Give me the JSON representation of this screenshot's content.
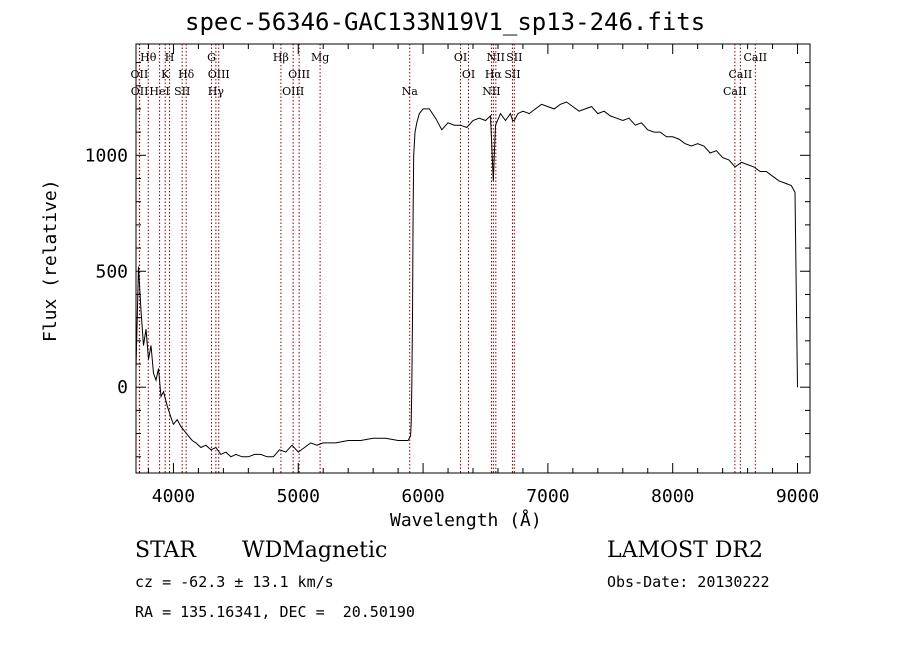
{
  "chart_data": {
    "type": "line",
    "title": "spec-56346-GAC133N19V1_sp13-246.fits",
    "xlabel": "Wavelength (Å)",
    "ylabel": "Flux (relative)",
    "xlim": [
      3700,
      9100
    ],
    "ylim": [
      -370,
      1480
    ],
    "xticks": [
      "4000",
      "5000",
      "6000",
      "7000",
      "8000",
      "9000"
    ],
    "yticks": [
      "0",
      "500",
      "1000"
    ],
    "line_color": "#000000",
    "marker_color": "#8b0000",
    "series": [
      {
        "x": [
          3700,
          3720,
          3740,
          3760,
          3780,
          3800,
          3820,
          3840,
          3860,
          3880,
          3900,
          3920,
          3950,
          3980,
          4000,
          4030,
          4060,
          4090,
          4120,
          4150,
          4180,
          4220,
          4260,
          4300,
          4340,
          4380,
          4420,
          4460,
          4500,
          4550,
          4600,
          4650,
          4700,
          4750,
          4800,
          4850,
          4900,
          4950,
          5000,
          5050,
          5100,
          5150,
          5200,
          5300,
          5400,
          5500,
          5600,
          5700,
          5800,
          5880,
          5900,
          5905,
          5910,
          5915,
          5920,
          5925,
          5935,
          5950,
          5970,
          6000,
          6050,
          6100,
          6150,
          6200,
          6250,
          6300,
          6350,
          6400,
          6450,
          6500,
          6540,
          6563,
          6580,
          6620,
          6660,
          6700,
          6717,
          6731,
          6760,
          6800,
          6850,
          6900,
          6950,
          7000,
          7050,
          7100,
          7150,
          7200,
          7250,
          7300,
          7350,
          7400,
          7450,
          7500,
          7550,
          7600,
          7650,
          7700,
          7750,
          7800,
          7850,
          7900,
          7950,
          8000,
          8050,
          8100,
          8150,
          8200,
          8250,
          8300,
          8350,
          8400,
          8450,
          8500,
          8550,
          8600,
          8650,
          8700,
          8750,
          8800,
          8850,
          8900,
          8950,
          8980,
          8990,
          9000
        ],
        "y": [
          80,
          520,
          330,
          180,
          250,
          120,
          180,
          60,
          30,
          80,
          -40,
          -20,
          -80,
          -130,
          -160,
          -140,
          -170,
          -190,
          -210,
          -230,
          -240,
          -260,
          -250,
          -270,
          -260,
          -290,
          -280,
          -300,
          -290,
          -300,
          -300,
          -290,
          -290,
          -300,
          -300,
          -270,
          -280,
          -250,
          -280,
          -260,
          -240,
          -250,
          -240,
          -240,
          -230,
          -230,
          -220,
          -220,
          -230,
          -230,
          -210,
          -150,
          0,
          300,
          750,
          1000,
          1100,
          1140,
          1180,
          1200,
          1200,
          1160,
          1110,
          1140,
          1130,
          1130,
          1120,
          1150,
          1160,
          1150,
          1170,
          890,
          1130,
          1180,
          1150,
          1180,
          1150,
          1150,
          1180,
          1190,
          1180,
          1200,
          1220,
          1210,
          1200,
          1220,
          1230,
          1210,
          1190,
          1200,
          1210,
          1180,
          1190,
          1170,
          1160,
          1150,
          1160,
          1130,
          1140,
          1110,
          1100,
          1100,
          1080,
          1080,
          1070,
          1050,
          1040,
          1050,
          1040,
          1010,
          1020,
          990,
          980,
          950,
          970,
          960,
          950,
          930,
          930,
          910,
          890,
          880,
          870,
          840,
          400,
          0
        ]
      }
    ],
    "lines": [
      {
        "x": 3727,
        "row": 1,
        "label": "OII"
      },
      {
        "x": 3729,
        "row": 2,
        "label": "OII"
      },
      {
        "x": 3798,
        "row": 0,
        "label": "Hθ"
      },
      {
        "x": 3889,
        "row": 2,
        "label": "HeI"
      },
      {
        "x": 3934,
        "row": 1,
        "label": "K"
      },
      {
        "x": 3969,
        "row": 0,
        "label": "H"
      },
      {
        "x": 4070,
        "row": 2,
        "label": "SII"
      },
      {
        "x": 4102,
        "row": 1,
        "label": "Hδ"
      },
      {
        "x": 4305,
        "row": 0,
        "label": "G"
      },
      {
        "x": 4340,
        "row": 2,
        "label": "Hγ"
      },
      {
        "x": 4363,
        "row": 1,
        "label": "OIII"
      },
      {
        "x": 4861,
        "row": 0,
        "label": "Hβ"
      },
      {
        "x": 4959,
        "row": 2,
        "label": "OIII"
      },
      {
        "x": 5007,
        "row": 1,
        "label": "OIII"
      },
      {
        "x": 5175,
        "row": 0,
        "label": "Mg"
      },
      {
        "x": 5893,
        "row": 2,
        "label": "Na"
      },
      {
        "x": 6300,
        "row": 0,
        "label": "OI"
      },
      {
        "x": 6364,
        "row": 1,
        "label": "OI"
      },
      {
        "x": 6548,
        "row": 2,
        "label": "NII"
      },
      {
        "x": 6563,
        "row": 1,
        "label": "Hα"
      },
      {
        "x": 6583,
        "row": 0,
        "label": "NII"
      },
      {
        "x": 6716,
        "row": 1,
        "label": "SII"
      },
      {
        "x": 6731,
        "row": 0,
        "label": "SII"
      },
      {
        "x": 8498,
        "row": 2,
        "label": "CaII"
      },
      {
        "x": 8542,
        "row": 1,
        "label": "CaII"
      },
      {
        "x": 8662,
        "row": 0,
        "label": "CaII"
      }
    ]
  },
  "info": {
    "class": "STAR",
    "subclass": "WDMagnetic",
    "survey": "LAMOST DR2",
    "cz": "cz = -62.3 ± 13.1 km/s",
    "obs_date": "Obs-Date: 20130222",
    "radec": "RA = 135.16341, DEC =  20.50190"
  }
}
